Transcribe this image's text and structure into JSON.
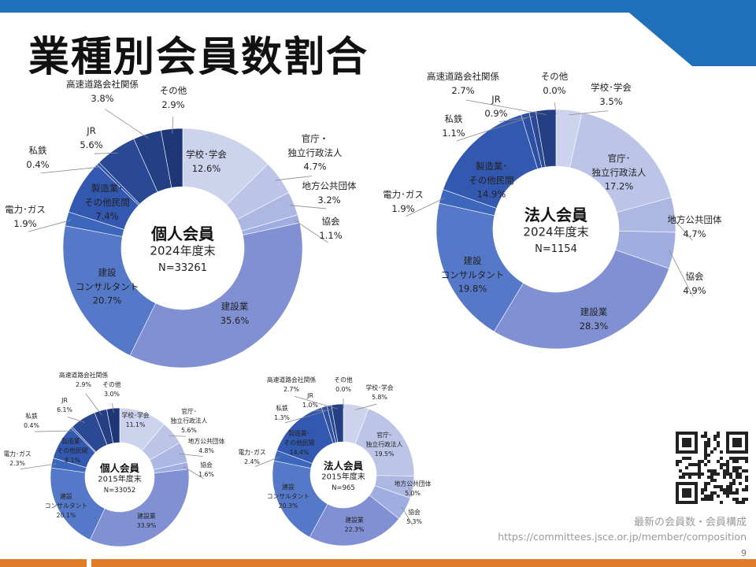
{
  "slide": {
    "title": "業種別会員数割合",
    "footer_caption": "最新の会員数・会員構成",
    "footer_url": "https://committees.jsce.or.jp/member/composition",
    "page_number": "9"
  },
  "chart_data": [
    {
      "type": "pie",
      "center_title": "個人会員",
      "center_year": "2024年度末",
      "center_n": "N=33261",
      "slices": [
        {
          "label": "学校･学会",
          "value": 12.6,
          "value_label": "12.6%",
          "color": "#cdd3ec"
        },
        {
          "label": "官庁・\n独立行政法人",
          "value": 4.7,
          "value_label": "4.7%",
          "color": "#bcc5e7"
        },
        {
          "label": "地方公共団体",
          "value": 3.2,
          "value_label": "3.2%",
          "color": "#adb8e2"
        },
        {
          "label": "協会",
          "value": 1.1,
          "value_label": "1.1%",
          "color": "#a0ade0"
        },
        {
          "label": "建設業",
          "value": 35.6,
          "value_label": "35.6%",
          "color": "#8090d2"
        },
        {
          "label": "建設\nコンサルタント",
          "value": 20.7,
          "value_label": "20.7%",
          "color": "#5578c8"
        },
        {
          "label": "電力･ガス",
          "value": 1.9,
          "value_label": "1.9%",
          "color": "#3d66bd"
        },
        {
          "label": "製造業･\nその他民間",
          "value": 7.4,
          "value_label": "7.4%",
          "color": "#3358b0"
        },
        {
          "label": "私鉄",
          "value": 0.4,
          "value_label": "0.4%",
          "color": "#2d4fa4"
        },
        {
          "label": "JR",
          "value": 5.6,
          "value_label": "5.6%",
          "color": "#2a4894"
        },
        {
          "label": "高速道路会社関係",
          "value": 3.8,
          "value_label": "3.8%",
          "color": "#243f84"
        },
        {
          "label": "その他",
          "value": 2.9,
          "value_label": "2.9%",
          "color": "#1e3675"
        }
      ]
    },
    {
      "type": "pie",
      "center_title": "法人会員",
      "center_year": "2024年度末",
      "center_n": "N=1154",
      "slices": [
        {
          "label": "学校･学会",
          "value": 3.5,
          "value_label": "3.5%",
          "color": "#cdd3ec"
        },
        {
          "label": "官庁･\n独立行政法人",
          "value": 17.2,
          "value_label": "17.2%",
          "color": "#bcc5e7"
        },
        {
          "label": "地方公共団体",
          "value": 4.7,
          "value_label": "4.7%",
          "color": "#adb8e2"
        },
        {
          "label": "協会",
          "value": 4.9,
          "value_label": "4.9%",
          "color": "#a0ade0"
        },
        {
          "label": "建設業",
          "value": 28.3,
          "value_label": "28.3%",
          "color": "#8090d2"
        },
        {
          "label": "建設\nコンサルタント",
          "value": 19.8,
          "value_label": "19.8%",
          "color": "#5578c8"
        },
        {
          "label": "電力･ガス",
          "value": 1.9,
          "value_label": "1.9%",
          "color": "#3d66bd"
        },
        {
          "label": "製造業･\nその他民間",
          "value": 14.9,
          "value_label": "14.9%",
          "color": "#3358b0"
        },
        {
          "label": "私鉄",
          "value": 1.1,
          "value_label": "1.1%",
          "color": "#2d4fa4"
        },
        {
          "label": "JR",
          "value": 0.9,
          "value_label": "0.9%",
          "color": "#2a4894"
        },
        {
          "label": "高速道路会社関係",
          "value": 2.7,
          "value_label": "2.7%",
          "color": "#243f84"
        },
        {
          "label": "その他",
          "value": 0.0,
          "value_label": "0.0%",
          "color": "#1e3675"
        }
      ]
    },
    {
      "type": "pie",
      "center_title": "個人会員",
      "center_year": "2015年度末",
      "center_n": "N=33052",
      "slices": [
        {
          "label": "学校･学会",
          "value": 11.1,
          "value_label": "11.1%",
          "color": "#cdd3ec"
        },
        {
          "label": "官庁･\n独立行政法人",
          "value": 5.6,
          "value_label": "5.6%",
          "color": "#bcc5e7"
        },
        {
          "label": "地方公共団体",
          "value": 4.8,
          "value_label": "4.8%",
          "color": "#adb8e2"
        },
        {
          "label": "協会",
          "value": 1.6,
          "value_label": "1.6%",
          "color": "#a0ade0"
        },
        {
          "label": "建設業",
          "value": 33.9,
          "value_label": "33.9%",
          "color": "#8090d2"
        },
        {
          "label": "建設\nコンサルタント",
          "value": 20.1,
          "value_label": "20.1%",
          "color": "#5578c8"
        },
        {
          "label": "電力･ガス",
          "value": 2.3,
          "value_label": "2.3%",
          "color": "#3d66bd"
        },
        {
          "label": "製造業･\nその他民間",
          "value": 8.1,
          "value_label": "8.1%",
          "color": "#3358b0"
        },
        {
          "label": "私鉄",
          "value": 0.4,
          "value_label": "0.4%",
          "color": "#2d4fa4"
        },
        {
          "label": "JR",
          "value": 6.1,
          "value_label": "6.1%",
          "color": "#2a4894"
        },
        {
          "label": "高速道路会社関係",
          "value": 2.9,
          "value_label": "2.9%",
          "color": "#243f84"
        },
        {
          "label": "その他",
          "value": 3.0,
          "value_label": "3.0%",
          "color": "#1e3675"
        }
      ]
    },
    {
      "type": "pie",
      "center_title": "法人会員",
      "center_year": "2015年度末",
      "center_n": "N=965",
      "slices": [
        {
          "label": "学校･学会",
          "value": 5.8,
          "value_label": "5.8%",
          "color": "#cdd3ec"
        },
        {
          "label": "官庁･\n独立行政法人",
          "value": 19.5,
          "value_label": "19.5%",
          "color": "#bcc5e7"
        },
        {
          "label": "地方公共団体",
          "value": 5.0,
          "value_label": "5.0%",
          "color": "#adb8e2"
        },
        {
          "label": "協会",
          "value": 5.3,
          "value_label": "5.3%",
          "color": "#a0ade0"
        },
        {
          "label": "建設業",
          "value": 22.3,
          "value_label": "22.3%",
          "color": "#8090d2"
        },
        {
          "label": "建設\nコンサルタント",
          "value": 20.3,
          "value_label": "20.3%",
          "color": "#5578c8"
        },
        {
          "label": "電力･ガス",
          "value": 2.4,
          "value_label": "2.4%",
          "color": "#3d66bd"
        },
        {
          "label": "製造業･\nその他民間",
          "value": 14.4,
          "value_label": "14.4%",
          "color": "#3358b0"
        },
        {
          "label": "私鉄",
          "value": 1.3,
          "value_label": "1.3%",
          "color": "#2d4fa4"
        },
        {
          "label": "JR",
          "value": 1.0,
          "value_label": "1.0%",
          "color": "#2a4894"
        },
        {
          "label": "高速道路会社関係",
          "value": 2.7,
          "value_label": "2.7%",
          "color": "#243f84"
        },
        {
          "label": "その他",
          "value": 0.0,
          "value_label": "0.0%",
          "color": "#1e3675"
        }
      ]
    }
  ]
}
